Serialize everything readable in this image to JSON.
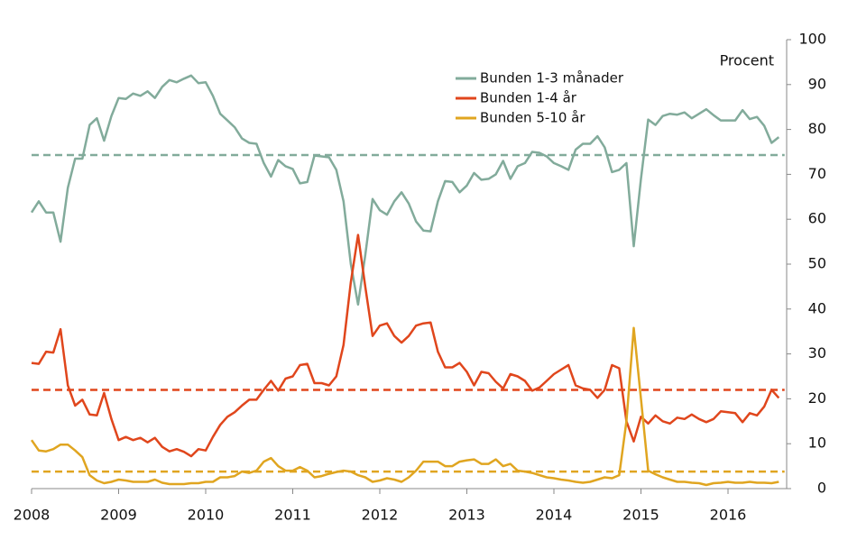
{
  "chart_data": {
    "type": "line",
    "y_axis_label": "Procent",
    "xlim": [
      2008,
      2016.65
    ],
    "xticks": [
      2008,
      2009,
      2010,
      2011,
      2012,
      2013,
      2014,
      2015,
      2016
    ],
    "ylim": [
      0,
      100
    ],
    "yticks": [
      0,
      10,
      20,
      30,
      40,
      50,
      60,
      70,
      80,
      90,
      100
    ],
    "legend": "top-center",
    "x": [
      2008,
      2008.083,
      2008.167,
      2008.25,
      2008.333,
      2008.417,
      2008.5,
      2008.583,
      2008.667,
      2008.75,
      2008.833,
      2008.917,
      2009,
      2009.083,
      2009.167,
      2009.25,
      2009.333,
      2009.417,
      2009.5,
      2009.583,
      2009.667,
      2009.75,
      2009.833,
      2009.917,
      2010,
      2010.083,
      2010.167,
      2010.25,
      2010.333,
      2010.417,
      2010.5,
      2010.583,
      2010.667,
      2010.75,
      2010.833,
      2010.917,
      2011,
      2011.083,
      2011.167,
      2011.25,
      2011.333,
      2011.417,
      2011.5,
      2011.583,
      2011.667,
      2011.75,
      2011.833,
      2011.917,
      2012,
      2012.083,
      2012.167,
      2012.25,
      2012.333,
      2012.417,
      2012.5,
      2012.583,
      2012.667,
      2012.75,
      2012.833,
      2012.917,
      2013,
      2013.083,
      2013.167,
      2013.25,
      2013.333,
      2013.417,
      2013.5,
      2013.583,
      2013.667,
      2013.75,
      2013.833,
      2013.917,
      2014,
      2014.083,
      2014.167,
      2014.25,
      2014.333,
      2014.417,
      2014.5,
      2014.583,
      2014.667,
      2014.75,
      2014.833,
      2014.917,
      2015,
      2015.083,
      2015.167,
      2015.25,
      2015.333,
      2015.417,
      2015.5,
      2015.583,
      2015.667,
      2015.75,
      2015.833,
      2015.917,
      2016,
      2016.083,
      2016.167,
      2016.25,
      2016.333,
      2016.417,
      2016.5,
      2016.583
    ],
    "series": [
      {
        "name": "Bunden 1-3 månader",
        "color": "#82ab9b",
        "values": [
          61.5,
          64,
          61.5,
          61.5,
          55,
          67,
          73.5,
          73.5,
          81,
          82.5,
          77.5,
          83,
          87,
          86.8,
          88,
          87.5,
          88.5,
          87,
          89.5,
          91,
          90.5,
          91.3,
          92,
          90.3,
          90.5,
          87.5,
          83.5,
          82,
          80.5,
          78,
          77,
          76.8,
          72.5,
          69.5,
          73.2,
          71.8,
          71.2,
          68,
          68.3,
          74.2,
          74,
          73.8,
          71,
          64,
          50,
          41,
          52,
          64.5,
          62,
          61,
          64,
          66,
          63.5,
          59.5,
          57.5,
          57.3,
          64,
          68.5,
          68.3,
          66,
          67.5,
          70.3,
          68.8,
          69,
          70,
          73,
          69,
          71.8,
          72.5,
          75,
          74.8,
          74,
          72.5,
          71.8,
          71,
          75.5,
          76.8,
          76.8,
          78.5,
          76,
          70.5,
          71,
          72.5,
          54,
          69,
          82.2,
          81,
          83,
          83.5,
          83.3,
          83.8,
          82.5,
          83.5,
          84.5,
          83.2,
          82,
          82,
          82,
          84.3,
          82.3,
          82.8,
          80.8,
          77,
          78.3
        ]
      },
      {
        "name": "Bunden 1-4 år",
        "color": "#e0461c",
        "values": [
          28,
          27.8,
          30.5,
          30.3,
          35.5,
          23,
          18.5,
          19.8,
          16.5,
          16.3,
          21.3,
          15.5,
          10.8,
          11.5,
          10.8,
          11.3,
          10.3,
          11.3,
          9.3,
          8.3,
          8.8,
          8.2,
          7.2,
          8.8,
          8.5,
          11.5,
          14.2,
          16,
          17,
          18.5,
          19.8,
          19.8,
          22,
          24,
          21.8,
          24.5,
          25,
          27.5,
          27.8,
          23.5,
          23.5,
          23,
          25,
          32,
          46,
          56.5,
          45,
          34,
          36.3,
          36.8,
          34,
          32.5,
          34,
          36.3,
          36.8,
          37,
          30.5,
          27,
          27,
          28,
          26,
          23,
          26,
          25.7,
          23.8,
          22.3,
          25.5,
          25,
          24,
          21.8,
          22.5,
          24,
          25.5,
          26.5,
          27.5,
          23,
          22.3,
          22,
          20.2,
          22,
          27.5,
          26.8,
          15,
          10.5,
          16,
          14.5,
          16.3,
          15,
          14.5,
          15.8,
          15.5,
          16.5,
          15.5,
          14.8,
          15.5,
          17.2,
          17,
          16.8,
          14.8,
          16.8,
          16.3,
          18.3,
          22,
          20.2
        ]
      },
      {
        "name": "Bunden 5-10 år",
        "color": "#e0a520",
        "values": [
          10.8,
          8.5,
          8.3,
          8.8,
          9.8,
          9.8,
          8.5,
          7,
          3,
          1.8,
          1.2,
          1.5,
          2,
          1.8,
          1.5,
          1.5,
          1.5,
          2,
          1.3,
          1,
          1,
          1,
          1.2,
          1.2,
          1.5,
          1.5,
          2.5,
          2.5,
          2.8,
          3.8,
          3.5,
          4,
          6,
          6.8,
          5,
          4,
          4,
          4.8,
          4,
          2.5,
          2.8,
          3.3,
          3.7,
          4,
          3.8,
          3,
          2.5,
          1.5,
          1.8,
          2.3,
          2,
          1.5,
          2.5,
          4,
          6,
          6,
          6,
          5,
          5,
          6,
          6.3,
          6.5,
          5.5,
          5.5,
          6.5,
          5,
          5.5,
          4,
          3.8,
          3.5,
          3,
          2.5,
          2.3,
          2,
          1.8,
          1.5,
          1.3,
          1.5,
          2,
          2.5,
          2.3,
          3,
          15,
          35.8,
          20,
          4,
          3.2,
          2.5,
          2,
          1.5,
          1.5,
          1.3,
          1.2,
          0.8,
          1.2,
          1.3,
          1.5,
          1.3,
          1.3,
          1.5,
          1.3,
          1.3,
          1.2,
          1.5
        ]
      }
    ],
    "reference_lines": [
      {
        "value": 74.3,
        "color": "#82ab9b"
      },
      {
        "value": 22,
        "color": "#e0461c"
      },
      {
        "value": 3.8,
        "color": "#e0a520"
      }
    ]
  }
}
